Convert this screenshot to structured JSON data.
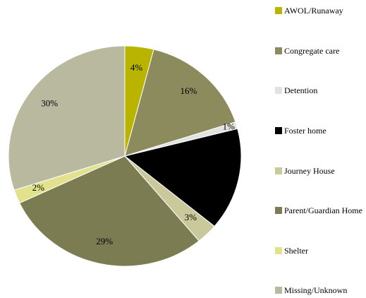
{
  "chart_data": {
    "type": "pie",
    "categories": [
      "AWOL/Runaway",
      "Congregate care",
      "Detention",
      "Foster home",
      "Journey House",
      "Parent/Guardian Home",
      "Shelter",
      "Missing/Unknown"
    ],
    "values": [
      4,
      16,
      1,
      15,
      3,
      29,
      2,
      30
    ],
    "value_labels": [
      "4%",
      "16%",
      "1%",
      null,
      "3%",
      "29%",
      "2%",
      "30%"
    ],
    "colors": [
      "#b8b400",
      "#8c8b5d",
      "#e2e2e2",
      "#000000",
      "#c9c99c",
      "#7c7c52",
      "#e2e28c",
      "#b9b9a0"
    ]
  }
}
